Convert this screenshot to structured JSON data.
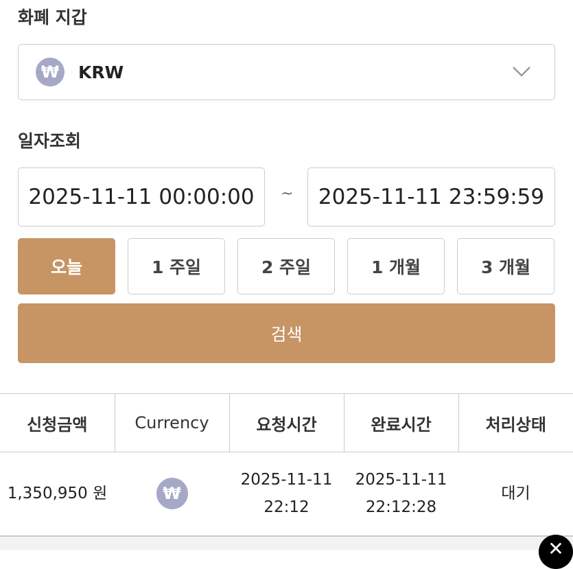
{
  "wallet": {
    "title": "화폐 지갑",
    "currency": "KRW",
    "coin_symbol": "₩",
    "chevron": "chevron-down-icon"
  },
  "date_query": {
    "title": "일자조회",
    "start": "2025-11-11 00:00:00",
    "separator": "~",
    "end": "2025-11-11 23:59:59"
  },
  "periods": [
    {
      "label": "오늘",
      "active": true
    },
    {
      "label": "1 주일"
    },
    {
      "label": "2 주일"
    },
    {
      "label": "1 개월"
    },
    {
      "label": "3 개월"
    }
  ],
  "search_label": "검색",
  "table": {
    "headers": [
      "신청금액",
      "Currency",
      "요청시간",
      "완료시간",
      "처리상태"
    ],
    "rows": [
      {
        "amount": "1,350,950 원",
        "currency_symbol": "₩",
        "request_date": "2025-11-11",
        "request_time": "22:12",
        "complete_date": "2025-11-11",
        "complete_time": "22:12:28",
        "status": "대기"
      }
    ]
  },
  "colors": {
    "accent": "#c79464",
    "coin": "#a5a8c6"
  }
}
